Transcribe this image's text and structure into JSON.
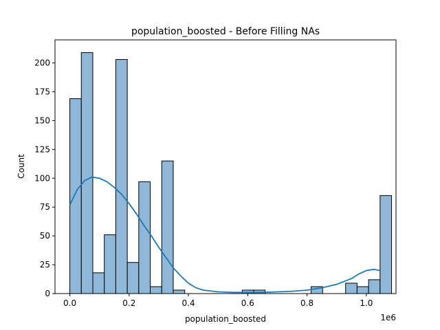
{
  "chart_data": {
    "type": "bar",
    "subtype": "histogram with kde",
    "title": "population_boosted - Before Filling NAs",
    "xlabel": "population_boosted",
    "ylabel": "Count",
    "x_offset_label": "1e6",
    "xlim": [
      -0.05,
      1.1
    ],
    "ylim": [
      0,
      220
    ],
    "x_ticks": [
      0.0,
      0.2,
      0.4,
      0.6,
      0.8,
      1.0
    ],
    "x_tick_labels": [
      "0.0",
      "0.2",
      "0.4",
      "0.6",
      "0.8",
      "1.0"
    ],
    "y_ticks": [
      0,
      25,
      50,
      75,
      100,
      125,
      150,
      175,
      200
    ],
    "y_tick_labels": [
      "0",
      "25",
      "50",
      "75",
      "100",
      "125",
      "150",
      "175",
      "200"
    ],
    "bin_width": 0.03875,
    "bin_edges_start": 0.0,
    "counts": [
      169,
      209,
      18,
      51,
      203,
      27,
      97,
      6,
      115,
      3,
      0,
      0,
      0,
      0,
      0,
      3,
      3,
      0,
      0,
      0,
      0,
      6,
      0,
      0,
      9,
      6,
      12,
      85
    ],
    "kde": {
      "x": [
        0.0,
        0.025,
        0.05,
        0.075,
        0.1,
        0.125,
        0.15,
        0.175,
        0.2,
        0.225,
        0.25,
        0.275,
        0.3,
        0.325,
        0.35,
        0.375,
        0.4,
        0.425,
        0.45,
        0.5,
        0.55,
        0.6,
        0.65,
        0.7,
        0.75,
        0.8,
        0.85,
        0.9,
        0.95,
        0.975,
        1.0,
        1.025,
        1.045
      ],
      "y": [
        77,
        90,
        98,
        101,
        100,
        97,
        92,
        86,
        78,
        69,
        59,
        50,
        40,
        31,
        22,
        15,
        9,
        5,
        3,
        1.5,
        1,
        1,
        1,
        1.5,
        2,
        3,
        5,
        8,
        13,
        17,
        20,
        21,
        20
      ]
    },
    "colors": {
      "bar_fill": "#8fb7d8",
      "bar_edge": "#000000",
      "kde_line": "#1f77b4"
    },
    "grid": false
  }
}
